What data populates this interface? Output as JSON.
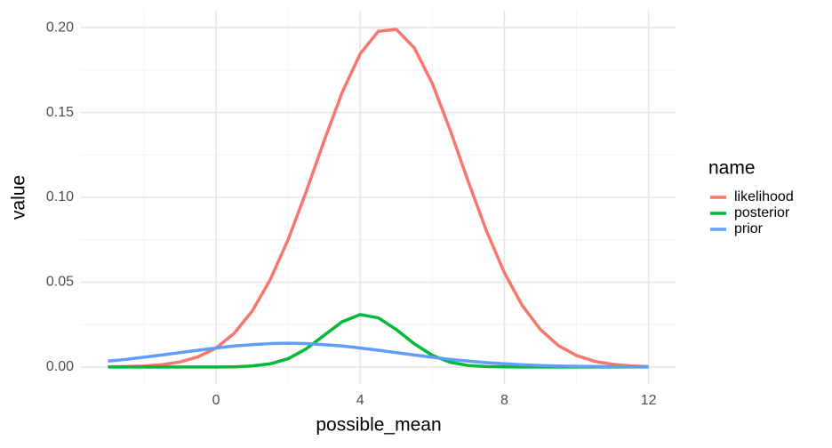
{
  "chart_data": {
    "type": "line",
    "x_label": "possible_mean",
    "y_label": "value",
    "legend_title": "name",
    "x": [
      -3,
      -2.5,
      -2,
      -1.5,
      -1,
      -0.5,
      0,
      0.5,
      1,
      1.5,
      2,
      2.5,
      3,
      3.5,
      4,
      4.5,
      5,
      5.5,
      6,
      6.5,
      7,
      7.5,
      8,
      8.5,
      9,
      9.5,
      10,
      10.5,
      11,
      11.5,
      12
    ],
    "series": [
      {
        "name": "likelihood",
        "color": "#F8766D",
        "values": [
          0.0001,
          0.0003,
          0.0006,
          0.0014,
          0.003,
          0.006,
          0.0112,
          0.0198,
          0.0329,
          0.0513,
          0.0751,
          0.1033,
          0.1334,
          0.1619,
          0.1846,
          0.1978,
          0.199,
          0.1881,
          0.1671,
          0.1394,
          0.1092,
          0.0804,
          0.0556,
          0.0361,
          0.0221,
          0.0126,
          0.0068,
          0.0034,
          0.0016,
          0.0007,
          0.0003
        ]
      },
      {
        "name": "posterior",
        "color": "#00BA38",
        "values": [
          0,
          0,
          0,
          0,
          0,
          0,
          0,
          0.0001,
          0.0006,
          0.0019,
          0.0049,
          0.0107,
          0.0187,
          0.0267,
          0.0309,
          0.029,
          0.0221,
          0.0137,
          0.0069,
          0.0028,
          0.0009,
          0.0003,
          0.0001,
          0,
          0,
          0,
          0,
          0,
          0,
          0,
          0
        ]
      },
      {
        "name": "prior",
        "color": "#619CFF",
        "values": [
          0.0035,
          0.0045,
          0.0058,
          0.0071,
          0.0085,
          0.0099,
          0.0112,
          0.0124,
          0.0132,
          0.0138,
          0.014,
          0.0138,
          0.0132,
          0.0124,
          0.0112,
          0.0099,
          0.0085,
          0.0071,
          0.0058,
          0.0045,
          0.0035,
          0.0026,
          0.0019,
          0.0013,
          0.0009,
          0.0006,
          0.0004,
          0.0003,
          0.0002,
          0.0001,
          0.0001
        ]
      }
    ],
    "xlim": [
      -3.75,
      12.75
    ],
    "ylim": [
      -0.01,
      0.21
    ],
    "xticks": [
      0,
      4,
      8,
      12
    ],
    "yticks": [
      {
        "value": 0,
        "label": "0.00"
      },
      {
        "value": 0.05,
        "label": "0.05"
      },
      {
        "value": 0.1,
        "label": "0.10"
      },
      {
        "value": 0.15,
        "label": "0.15"
      },
      {
        "value": 0.2,
        "label": "0.20"
      }
    ],
    "x_minor_ticks": [
      -2,
      2,
      6,
      10
    ],
    "y_minor_ticks": [
      0.025,
      0.075,
      0.125,
      0.175
    ],
    "grid": true,
    "legend_position": "right"
  }
}
